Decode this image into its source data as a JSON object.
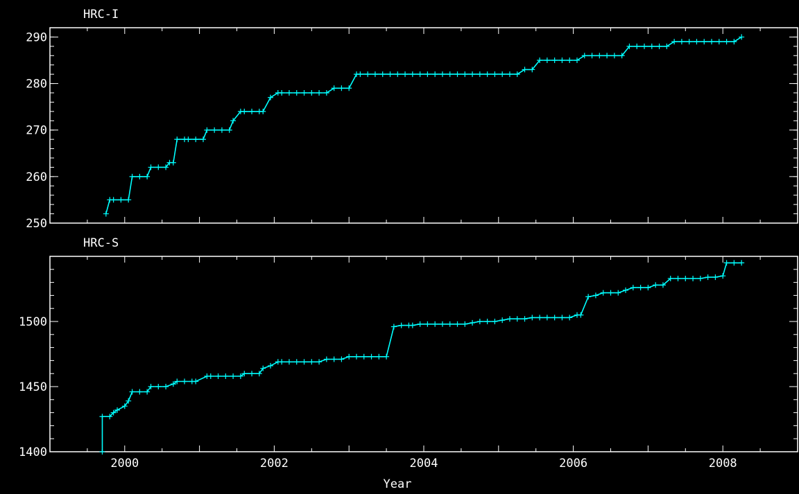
{
  "chart_data": [
    {
      "type": "line",
      "title": "HRC-I",
      "xlabel": "",
      "ylabel": "",
      "xlim": [
        1999.0,
        2009.0
      ],
      "ylim": [
        250,
        292
      ],
      "y_ticks": [
        250,
        260,
        270,
        280,
        290
      ],
      "x_ticks": [
        2000,
        2002,
        2004,
        2006,
        2008
      ],
      "line_color": "#00ffff",
      "marker": "+",
      "series": [
        {
          "x": [
            1999.75,
            1999.8,
            1999.85,
            1999.95,
            2000.05,
            2000.1,
            2000.2,
            2000.3,
            2000.35,
            2000.45,
            2000.55,
            2000.6,
            2000.65,
            2000.7,
            2000.8,
            2000.85,
            2000.95,
            2001.05,
            2001.1,
            2001.2,
            2001.3,
            2001.4,
            2001.45,
            2001.55,
            2001.6,
            2001.7,
            2001.8,
            2001.85,
            2001.95,
            2002.05,
            2002.1,
            2002.2,
            2002.3,
            2002.4,
            2002.5,
            2002.6,
            2002.7,
            2002.8,
            2002.9,
            2003.0,
            2003.1,
            2003.15,
            2003.25,
            2003.35,
            2003.45,
            2003.55,
            2003.65,
            2003.75,
            2003.85,
            2003.95,
            2004.05,
            2004.15,
            2004.25,
            2004.35,
            2004.45,
            2004.55,
            2004.65,
            2004.75,
            2004.85,
            2004.95,
            2005.05,
            2005.15,
            2005.25,
            2005.35,
            2005.45,
            2005.55,
            2005.65,
            2005.75,
            2005.85,
            2005.95,
            2006.05,
            2006.15,
            2006.25,
            2006.35,
            2006.45,
            2006.55,
            2006.65,
            2006.75,
            2006.85,
            2006.95,
            2007.05,
            2007.15,
            2007.25,
            2007.35,
            2007.45,
            2007.55,
            2007.65,
            2007.75,
            2007.85,
            2007.95,
            2008.05,
            2008.15,
            2008.25
          ],
          "y": [
            252,
            255,
            255,
            255,
            255,
            260,
            260,
            260,
            262,
            262,
            262,
            263,
            263,
            268,
            268,
            268,
            268,
            268,
            270,
            270,
            270,
            270,
            272,
            274,
            274,
            274,
            274,
            274,
            277,
            278,
            278,
            278,
            278,
            278,
            278,
            278,
            278,
            279,
            279,
            279,
            282,
            282,
            282,
            282,
            282,
            282,
            282,
            282,
            282,
            282,
            282,
            282,
            282,
            282,
            282,
            282,
            282,
            282,
            282,
            282,
            282,
            282,
            282,
            283,
            283,
            285,
            285,
            285,
            285,
            285,
            285,
            286,
            286,
            286,
            286,
            286,
            286,
            288,
            288,
            288,
            288,
            288,
            288,
            289,
            289,
            289,
            289,
            289,
            289,
            289,
            289,
            289,
            290
          ]
        }
      ]
    },
    {
      "type": "line",
      "title": "HRC-S",
      "xlabel": "Year",
      "ylabel": "",
      "xlim": [
        1999.0,
        2009.0
      ],
      "ylim": [
        1400,
        1550
      ],
      "y_ticks": [
        1400,
        1450,
        1500
      ],
      "x_ticks": [
        2000,
        2002,
        2004,
        2006,
        2008
      ],
      "line_color": "#00ffff",
      "marker": "+",
      "series": [
        {
          "x": [
            1999.7,
            1999.7,
            1999.8,
            1999.85,
            1999.9,
            2000.0,
            2000.05,
            2000.1,
            2000.2,
            2000.3,
            2000.35,
            2000.45,
            2000.55,
            2000.65,
            2000.7,
            2000.8,
            2000.9,
            2000.95,
            2001.1,
            2001.15,
            2001.25,
            2001.35,
            2001.45,
            2001.55,
            2001.6,
            2001.7,
            2001.8,
            2001.85,
            2001.95,
            2002.05,
            2002.1,
            2002.2,
            2002.3,
            2002.4,
            2002.5,
            2002.6,
            2002.7,
            2002.8,
            2002.9,
            2003.0,
            2003.1,
            2003.2,
            2003.3,
            2003.4,
            2003.5,
            2003.6,
            2003.7,
            2003.8,
            2003.85,
            2003.95,
            2004.05,
            2004.15,
            2004.25,
            2004.35,
            2004.45,
            2004.55,
            2004.65,
            2004.75,
            2004.85,
            2004.95,
            2005.05,
            2005.15,
            2005.25,
            2005.35,
            2005.45,
            2005.55,
            2005.65,
            2005.75,
            2005.85,
            2005.95,
            2006.05,
            2006.1,
            2006.2,
            2006.3,
            2006.4,
            2006.5,
            2006.6,
            2006.7,
            2006.8,
            2006.9,
            2007.0,
            2007.1,
            2007.2,
            2007.3,
            2007.4,
            2007.5,
            2007.6,
            2007.7,
            2007.8,
            2007.9,
            2008.0,
            2008.05,
            2008.15,
            2008.25
          ],
          "y": [
            1400,
            1427,
            1427,
            1430,
            1432,
            1435,
            1439,
            1446,
            1446,
            1446,
            1450,
            1450,
            1450,
            1452,
            1454,
            1454,
            1454,
            1454,
            1458,
            1458,
            1458,
            1458,
            1458,
            1458,
            1460,
            1460,
            1460,
            1464,
            1466,
            1469,
            1469,
            1469,
            1469,
            1469,
            1469,
            1469,
            1471,
            1471,
            1471,
            1473,
            1473,
            1473,
            1473,
            1473,
            1473,
            1496,
            1497,
            1497,
            1497,
            1498,
            1498,
            1498,
            1498,
            1498,
            1498,
            1498,
            1499,
            1500,
            1500,
            1500,
            1501,
            1502,
            1502,
            1502,
            1503,
            1503,
            1503,
            1503,
            1503,
            1503,
            1505,
            1505,
            1519,
            1520,
            1522,
            1522,
            1522,
            1524,
            1526,
            1526,
            1526,
            1528,
            1528,
            1533,
            1533,
            1533,
            1533,
            1533,
            1534,
            1534,
            1535,
            1545,
            1545,
            1545
          ]
        }
      ]
    }
  ]
}
